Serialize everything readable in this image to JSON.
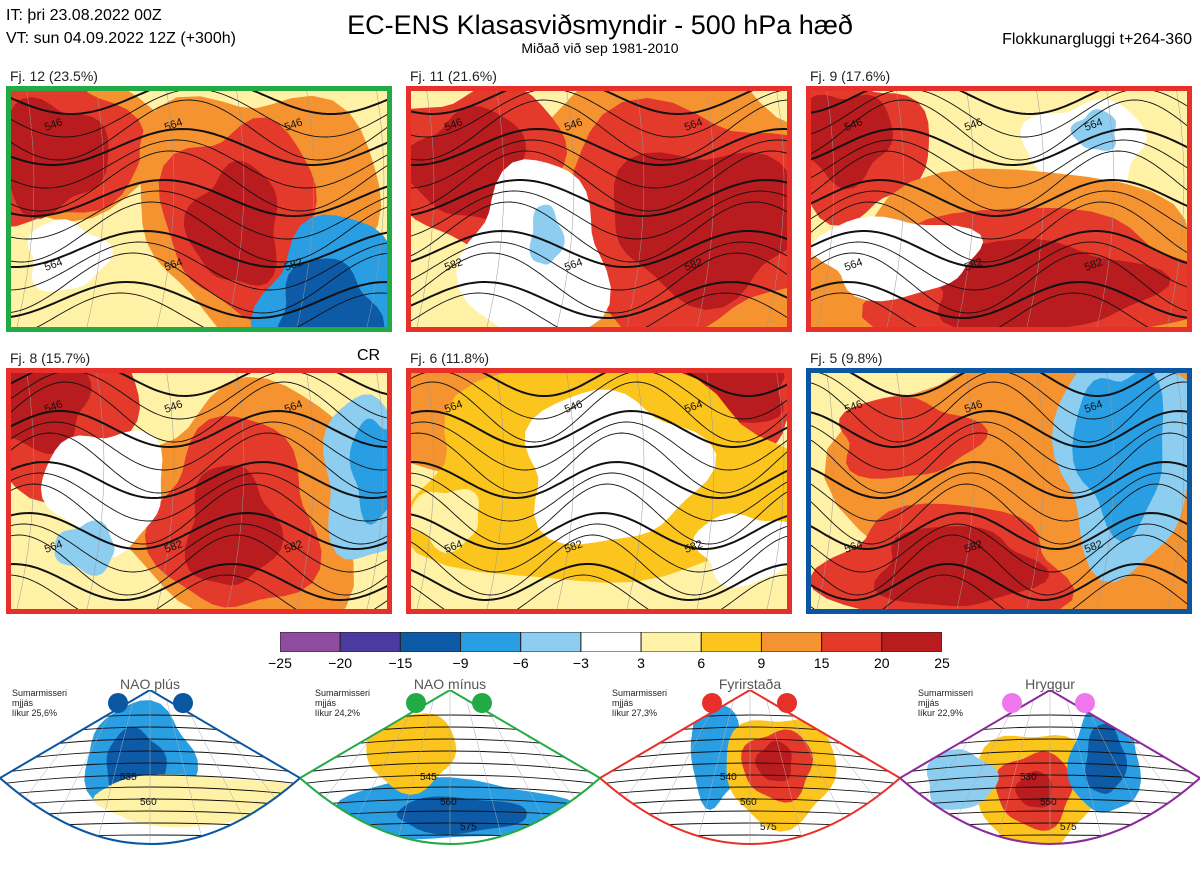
{
  "header": {
    "it": "IT: þri 23.08.2022 00Z",
    "vt": "VT: sun 04.09.2022 12Z  (+300h)",
    "title": "EC-ENS Klasasviðsmyndir - 500 hPa hæð",
    "subtitle": "Miðað við sep 1981-2010",
    "window": "Flokkunargluggi t+264-360"
  },
  "panels": [
    {
      "label": "Fj. 12 (23.5%)",
      "border": "#22aa44",
      "contours": [
        "546",
        "564",
        "546",
        "564",
        "564",
        "582"
      ]
    },
    {
      "label": "Fj. 11 (21.6%)",
      "border": "#e8302a",
      "contours": [
        "546",
        "546",
        "564",
        "582",
        "564",
        "582"
      ]
    },
    {
      "label": "Fj. 9 (17.6%)",
      "border": "#e8302a",
      "contours": [
        "546",
        "546",
        "564",
        "564",
        "582",
        "582"
      ]
    },
    {
      "label": "Fj. 8 (15.7%)",
      "border": "#e8302a",
      "contours": [
        "546",
        "546",
        "564",
        "564",
        "582",
        "582"
      ]
    },
    {
      "label": "Fj. 6 (11.8%)",
      "border": "#e8302a",
      "contours": [
        "564",
        "546",
        "564",
        "564",
        "582",
        "582"
      ]
    },
    {
      "label": "Fj. 5 (9.8%)",
      "border": "#0b56a0",
      "contours": [
        "546",
        "546",
        "564",
        "564",
        "582",
        "582"
      ]
    }
  ],
  "cr_label": "CR",
  "colorbar": {
    "ticks": [
      "−25",
      "−20",
      "−15",
      "−9",
      "−6",
      "−3",
      "3",
      "6",
      "9",
      "15",
      "20",
      "25"
    ],
    "colors": [
      "#8e4ba0",
      "#4b3aa0",
      "#0d5aa6",
      "#2a9ee2",
      "#8ccdf0",
      "#ffffff",
      "#fff2a6",
      "#fcc51e",
      "#f59331",
      "#e33a2c",
      "#b81c1e"
    ]
  },
  "regimes": [
    {
      "name": "NAO plús",
      "note": "Sumarmisseri\nmjjás\nlíkur 25,6%",
      "color": "#0b56a0",
      "contours": [
        "535",
        "560"
      ]
    },
    {
      "name": "NAO mínus",
      "note": "Sumarmisseri\nmjjás\nlíkur 24,2%",
      "color": "#22aa44",
      "contours": [
        "545",
        "560",
        "575"
      ]
    },
    {
      "name": "Fyrirstaða",
      "note": "Sumarmisseri\nmjjás\nlíkur 27,3%",
      "color": "#e8302a",
      "contours": [
        "540",
        "560",
        "575"
      ]
    },
    {
      "name": "Hryggur",
      "note": "Sumarmisseri\nmjjás\nlíkur 22,9%",
      "color": "#8b2a9a",
      "contours": [
        "530",
        "550",
        "575"
      ]
    }
  ],
  "chart_data": {
    "type": "heatmap",
    "title": "EC-ENS Klasasviðsmyndir - 500 hPa hæð",
    "colorbar_range": [
      -25,
      25
    ],
    "clusters": [
      {
        "name": "Fj. 12",
        "percent": 23.5
      },
      {
        "name": "Fj. 11",
        "percent": 21.6
      },
      {
        "name": "Fj. 9",
        "percent": 17.6
      },
      {
        "name": "Fj. 8",
        "percent": 15.7
      },
      {
        "name": "Fj. 6",
        "percent": 11.8
      },
      {
        "name": "Fj. 5",
        "percent": 9.8
      }
    ],
    "regimes": [
      {
        "name": "NAO plús",
        "likelihood": 25.6
      },
      {
        "name": "NAO mínus",
        "likelihood": 24.2
      },
      {
        "name": "Fyrirstaða",
        "likelihood": 27.3
      },
      {
        "name": "Hryggur",
        "likelihood": 22.9
      }
    ]
  }
}
